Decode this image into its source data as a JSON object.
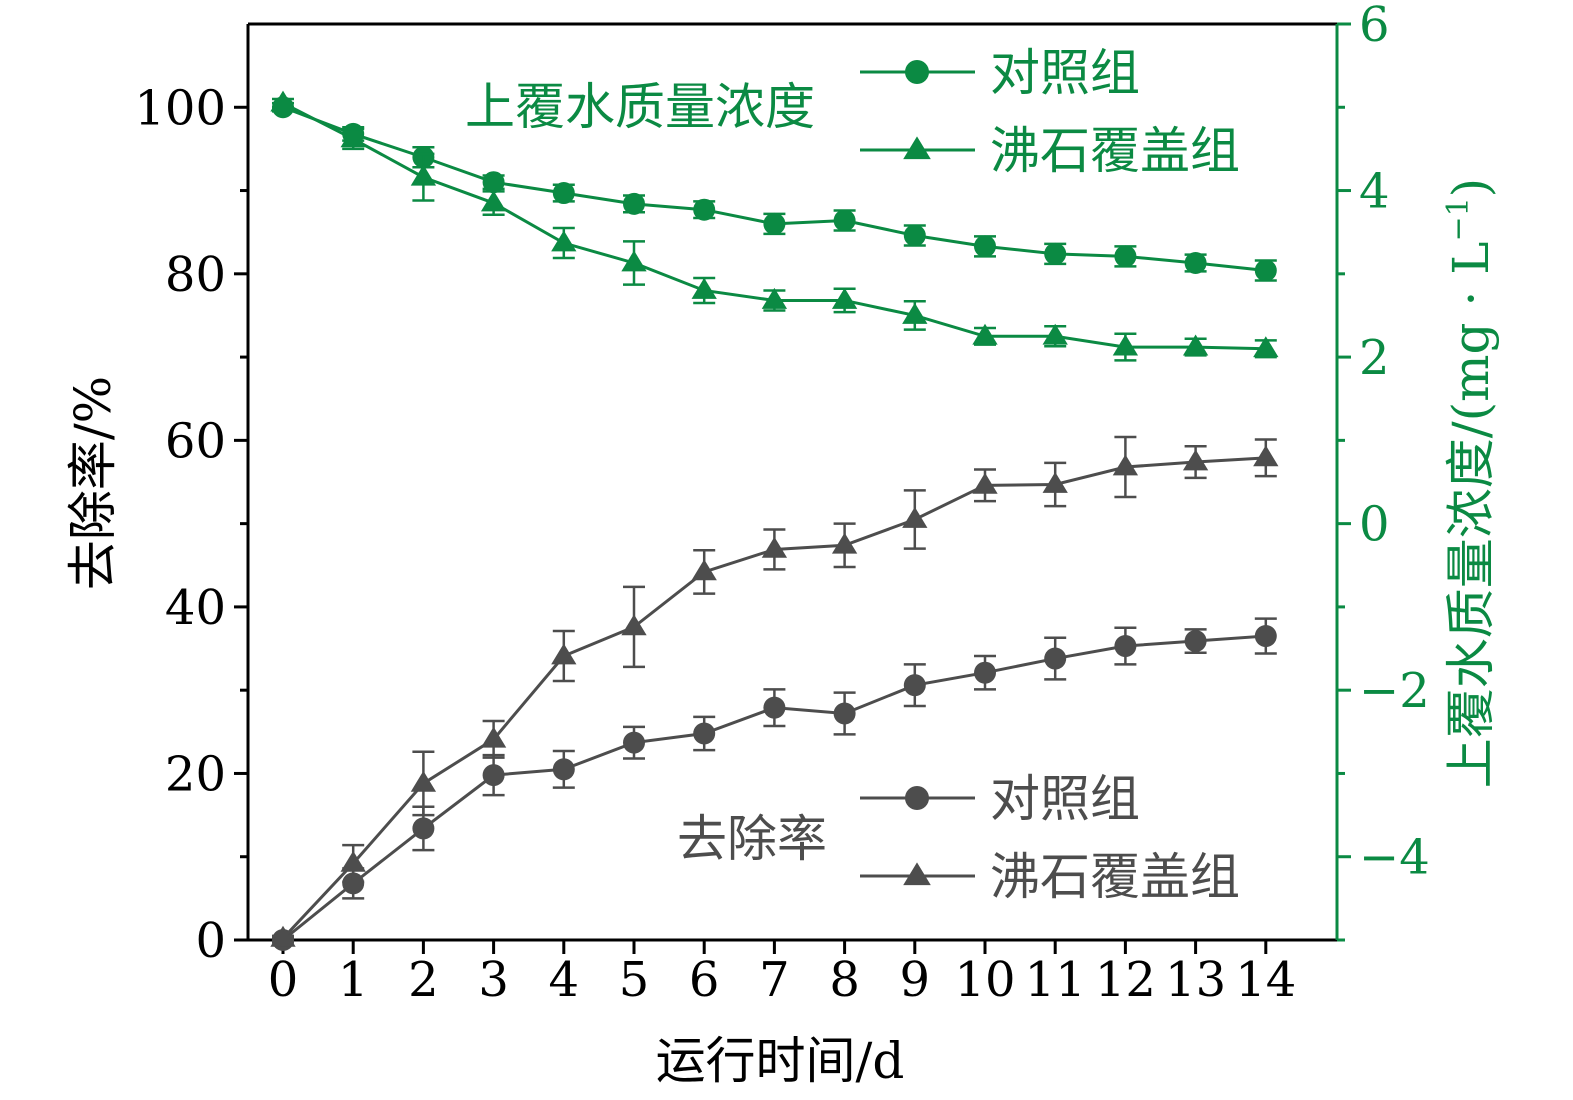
{
  "colors": {
    "green": "#0b8a43",
    "gray": "#4d4d4d",
    "axis": "#000000"
  },
  "chart_data": {
    "type": "line",
    "x": [
      0,
      1,
      2,
      3,
      4,
      5,
      6,
      7,
      8,
      9,
      10,
      11,
      12,
      13,
      14
    ],
    "xticks": [
      "0",
      "1",
      "2",
      "3",
      "4",
      "5",
      "6",
      "7",
      "8",
      "9",
      "10",
      "11",
      "12",
      "13",
      "14"
    ],
    "xlabel": "运行时间/d",
    "ylabel_left": "去除率/%",
    "ylabel_right": "上覆水质量浓度/(mg · L",
    "ylabel_right_sup": "−1",
    "ylabel_right_close": ")",
    "ylim_left": [
      0,
      110
    ],
    "ylim_right": [
      -5,
      6
    ],
    "yticks_left": [
      "0",
      "20",
      "40",
      "60",
      "80",
      "100"
    ],
    "yticks_right": [
      "−4",
      "−2",
      "0",
      "2",
      "4",
      "6"
    ],
    "grid": false,
    "series": [
      {
        "name": "对照组",
        "group": "concentration",
        "axis": "right",
        "marker": "circle",
        "values": [
          5.0,
          4.68,
          4.4,
          4.1,
          3.97,
          3.84,
          3.77,
          3.6,
          3.64,
          3.46,
          3.33,
          3.24,
          3.21,
          3.13,
          3.04
        ],
        "errors": [
          0.05,
          0.08,
          0.12,
          0.08,
          0.1,
          0.1,
          0.1,
          0.12,
          0.12,
          0.12,
          0.12,
          0.12,
          0.12,
          0.1,
          0.12
        ]
      },
      {
        "name": "沸石覆盖组",
        "group": "concentration",
        "axis": "right",
        "marker": "triangle",
        "values": [
          5.05,
          4.62,
          4.16,
          3.85,
          3.37,
          3.13,
          2.8,
          2.68,
          2.68,
          2.5,
          2.25,
          2.25,
          2.12,
          2.12,
          2.1
        ],
        "errors": [
          0.05,
          0.12,
          0.28,
          0.14,
          0.18,
          0.26,
          0.15,
          0.12,
          0.14,
          0.17,
          0.1,
          0.12,
          0.16,
          0.1,
          0.1
        ]
      },
      {
        "name": "对照组",
        "group": "removal",
        "axis": "left",
        "marker": "circle",
        "values": [
          0,
          6.8,
          13.4,
          19.8,
          20.5,
          23.7,
          24.8,
          27.9,
          27.2,
          30.6,
          32.1,
          33.8,
          35.3,
          35.9,
          36.5
        ],
        "errors": [
          0.3,
          1.8,
          2.6,
          2.4,
          2.2,
          1.9,
          2.0,
          2.2,
          2.5,
          2.5,
          2.0,
          2.5,
          2.2,
          1.4,
          2.1
        ]
      },
      {
        "name": "沸石覆盖组",
        "group": "removal",
        "axis": "left",
        "marker": "triangle",
        "values": [
          0.2,
          9.2,
          18.8,
          24.1,
          34.1,
          37.6,
          44.2,
          46.9,
          47.4,
          50.5,
          54.6,
          54.7,
          56.8,
          57.4,
          57.9
        ],
        "errors": [
          0.3,
          2.2,
          3.8,
          2.2,
          3.0,
          4.8,
          2.6,
          2.4,
          2.6,
          3.5,
          1.9,
          2.6,
          3.6,
          1.9,
          2.2
        ]
      }
    ],
    "legends": {
      "concentration": {
        "title": "上覆水质量浓度",
        "entries": [
          "对照组",
          "沸石覆盖组"
        ],
        "placement": "top-right"
      },
      "removal": {
        "title": "去除率",
        "entries": [
          "对照组",
          "沸石覆盖组"
        ],
        "placement": "bottom-right"
      }
    }
  }
}
